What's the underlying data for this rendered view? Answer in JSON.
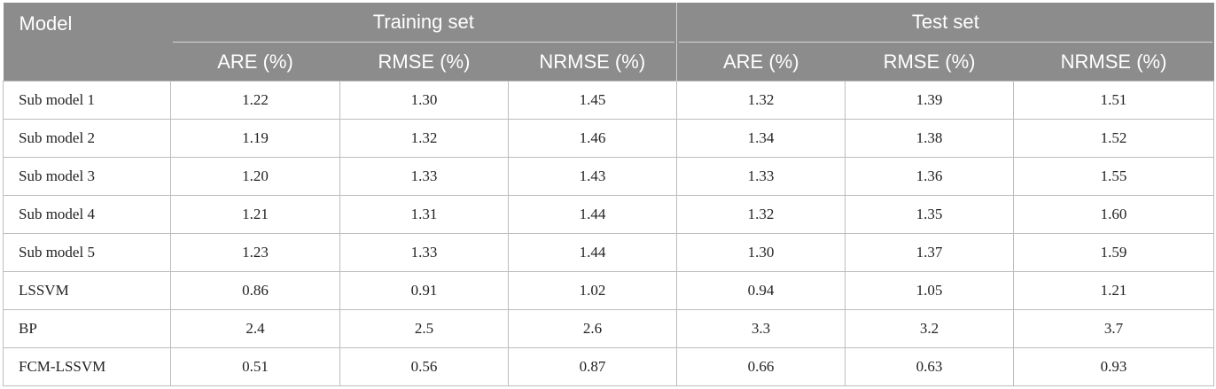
{
  "table": {
    "model_header": "Model",
    "groups": [
      "Training set",
      "Test set"
    ],
    "metrics": [
      "ARE (%)",
      "RMSE (%)",
      "NRMSE (%)",
      "ARE (%)",
      "RMSE (%)",
      "NRMSE (%)"
    ],
    "rows": [
      {
        "name": "Sub model 1",
        "values": [
          "1.22",
          "1.30",
          "1.45",
          "1.32",
          "1.39",
          "1.51"
        ]
      },
      {
        "name": "Sub model 2",
        "values": [
          "1.19",
          "1.32",
          "1.46",
          "1.34",
          "1.38",
          "1.52"
        ]
      },
      {
        "name": "Sub model 3",
        "values": [
          "1.20",
          "1.33",
          "1.43",
          "1.33",
          "1.36",
          "1.55"
        ]
      },
      {
        "name": "Sub model 4",
        "values": [
          "1.21",
          "1.31",
          "1.44",
          "1.32",
          "1.35",
          "1.60"
        ]
      },
      {
        "name": "Sub model 5",
        "values": [
          "1.23",
          "1.33",
          "1.44",
          "1.30",
          "1.37",
          "1.59"
        ]
      },
      {
        "name": "LSSVM",
        "values": [
          "0.86",
          "0.91",
          "1.02",
          "0.94",
          "1.05",
          "1.21"
        ]
      },
      {
        "name": "BP",
        "values": [
          "2.4",
          "2.5",
          "2.6",
          "3.3",
          "3.2",
          "3.7"
        ]
      },
      {
        "name": "FCM-LSSVM",
        "values": [
          "0.51",
          "0.56",
          "0.87",
          "0.66",
          "0.63",
          "0.93"
        ]
      }
    ]
  }
}
